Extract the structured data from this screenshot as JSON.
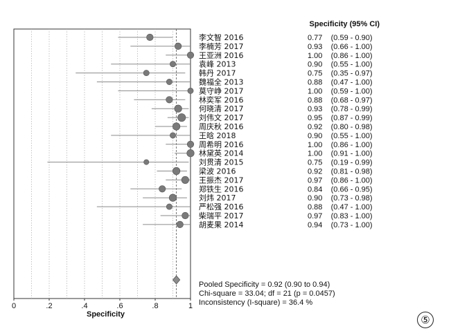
{
  "chart_data": {
    "type": "forest",
    "title": "Specificity (95% CI)",
    "xlabel": "Specificity",
    "xlim": [
      0,
      1
    ],
    "xticks": [
      "0",
      ".2",
      ".4",
      ".6",
      ".8",
      "1"
    ],
    "pooled_value": 0.92,
    "pooled_ci": [
      0.9,
      0.94
    ],
    "studies": [
      {
        "label": "李文智 2016",
        "value": 0.77,
        "ci_low": 0.59,
        "ci_high": 0.9,
        "ci_text": "0.77    (0.59 - 0.90)",
        "weight": 2
      },
      {
        "label": "李楠芳 2017",
        "value": 0.93,
        "ci_low": 0.66,
        "ci_high": 1.0,
        "ci_text": "0.93    (0.66 - 1.00)",
        "weight": 2
      },
      {
        "label": "王亚洲 2016",
        "value": 1.0,
        "ci_low": 0.86,
        "ci_high": 1.0,
        "ci_text": "1.00    (0.86 - 1.00)",
        "weight": 2
      },
      {
        "label": "袁峰 2013",
        "value": 0.9,
        "ci_low": 0.55,
        "ci_high": 1.0,
        "ci_text": "0.90    (0.55 - 1.00)",
        "weight": 1
      },
      {
        "label": "韩丹 2017",
        "value": 0.75,
        "ci_low": 0.35,
        "ci_high": 0.97,
        "ci_text": "0.75    (0.35 - 0.97)",
        "weight": 1
      },
      {
        "label": "魏福全 2013",
        "value": 0.88,
        "ci_low": 0.47,
        "ci_high": 1.0,
        "ci_text": "0.88    (0.47 - 1.00)",
        "weight": 1
      },
      {
        "label": "莫守峥 2017",
        "value": 1.0,
        "ci_low": 0.59,
        "ci_high": 1.0,
        "ci_text": "1.00    (0.59 - 1.00)",
        "weight": 1
      },
      {
        "label": "林奕军 2016",
        "value": 0.88,
        "ci_low": 0.68,
        "ci_high": 0.97,
        "ci_text": "0.88    (0.68 - 0.97)",
        "weight": 2
      },
      {
        "label": "何晓清 2017",
        "value": 0.93,
        "ci_low": 0.78,
        "ci_high": 0.99,
        "ci_text": "0.93    (0.78 - 0.99)",
        "weight": 3
      },
      {
        "label": "刘伟文 2017",
        "value": 0.95,
        "ci_low": 0.87,
        "ci_high": 0.99,
        "ci_text": "0.95    (0.87 - 0.99)",
        "weight": 4
      },
      {
        "label": "周庆秋 2016",
        "value": 0.92,
        "ci_low": 0.8,
        "ci_high": 0.98,
        "ci_text": "0.92    (0.80 - 0.98)",
        "weight": 3
      },
      {
        "label": "王晗 2018",
        "value": 0.9,
        "ci_low": 0.55,
        "ci_high": 1.0,
        "ci_text": "0.90    (0.55 - 1.00)",
        "weight": 1
      },
      {
        "label": "周希明 2016",
        "value": 1.0,
        "ci_low": 0.86,
        "ci_high": 1.0,
        "ci_text": "1.00    (0.86 - 1.00)",
        "weight": 2
      },
      {
        "label": "林黛英 2014",
        "value": 1.0,
        "ci_low": 0.91,
        "ci_high": 1.0,
        "ci_text": "1.00    (0.91 - 1.00)",
        "weight": 3
      },
      {
        "label": "刘贯清 2015",
        "value": 0.75,
        "ci_low": 0.19,
        "ci_high": 0.99,
        "ci_text": "0.75    (0.19 - 0.99)",
        "weight": 0.5
      },
      {
        "label": "梁波 2016",
        "value": 0.92,
        "ci_low": 0.81,
        "ci_high": 0.98,
        "ci_text": "0.92    (0.81 - 0.98)",
        "weight": 3
      },
      {
        "label": "王振杰 2017",
        "value": 0.97,
        "ci_low": 0.86,
        "ci_high": 1.0,
        "ci_text": "0.97    (0.86 - 1.00)",
        "weight": 3
      },
      {
        "label": "郑铁生 2016",
        "value": 0.84,
        "ci_low": 0.66,
        "ci_high": 0.95,
        "ci_text": "0.84    (0.66 - 0.95)",
        "weight": 2
      },
      {
        "label": "刘炜 2017",
        "value": 0.9,
        "ci_low": 0.73,
        "ci_high": 0.98,
        "ci_text": "0.90    (0.73 - 0.98)",
        "weight": 3
      },
      {
        "label": "严松强 2016",
        "value": 0.88,
        "ci_low": 0.47,
        "ci_high": 1.0,
        "ci_text": "0.88    (0.47 - 1.00)",
        "weight": 1
      },
      {
        "label": "柴瑞平 2017",
        "value": 0.97,
        "ci_low": 0.83,
        "ci_high": 1.0,
        "ci_text": "0.97    (0.83 - 1.00)",
        "weight": 2
      },
      {
        "label": "胡麦果 2014",
        "value": 0.94,
        "ci_low": 0.73,
        "ci_high": 1.0,
        "ci_text": "0.94    (0.73 - 1.00)",
        "weight": 2
      }
    ],
    "summary_lines": [
      "Pooled Specificity = 0.92 (0.90 to 0.94)",
      "Chi-square = 33.04; df = 21 (p = 0.0457)",
      "Inconsistency (I-square) = 36.4 %"
    ],
    "grid": true,
    "marker_color": "#7a7a7a",
    "pooled_color": "#8c8c8c"
  },
  "figure_mark": "⑤"
}
